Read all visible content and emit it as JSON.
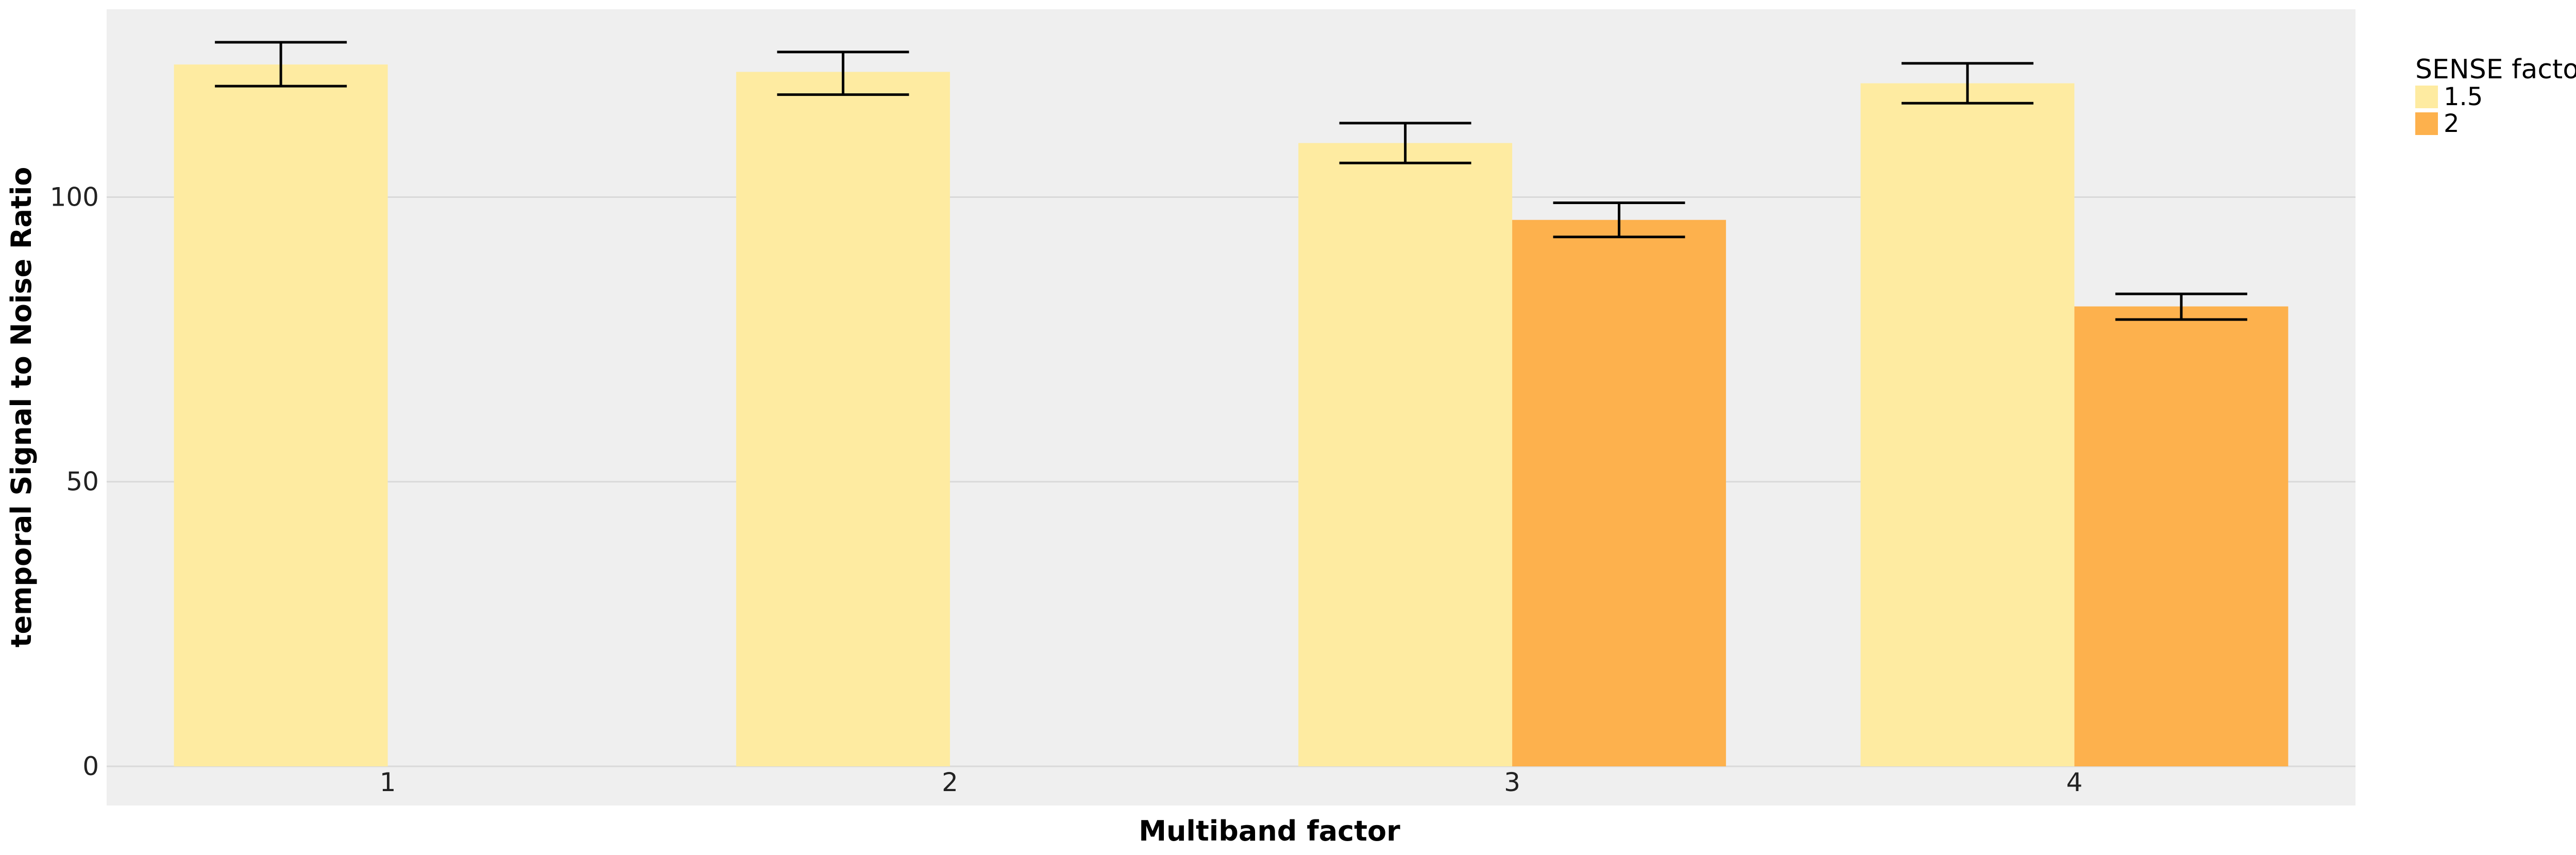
{
  "chart_data": {
    "type": "bar",
    "xlabel": "Multiband factor",
    "ylabel": "temporal Signal to Noise Ratio",
    "categories": [
      "1",
      "2",
      "3",
      "4"
    ],
    "ylim": [
      0,
      133
    ],
    "yticks": [
      0,
      50,
      100
    ],
    "ytick_labels": [
      "0",
      "50",
      "100"
    ],
    "grid": "horizontal",
    "legend": {
      "title": "SENSE factor",
      "placement": "right-top"
    },
    "series": [
      {
        "name": "1.5",
        "color": "#FEEBA1",
        "values": [
          123.3,
          122.0,
          109.5,
          120.0
        ],
        "error_low": [
          119.5,
          118.0,
          106.0,
          116.5
        ],
        "error_high": [
          127.2,
          125.5,
          113.0,
          123.5
        ]
      },
      {
        "name": "2",
        "color": "#FDB14D",
        "values": [
          null,
          null,
          96.0,
          80.8
        ],
        "error_low": [
          null,
          null,
          93.0,
          78.5
        ],
        "error_high": [
          null,
          null,
          99.0,
          83.0
        ]
      }
    ],
    "panel_background": "#EFEFEF",
    "gridline_color": "#D9D9D9",
    "errorbar_color": "#000000"
  }
}
